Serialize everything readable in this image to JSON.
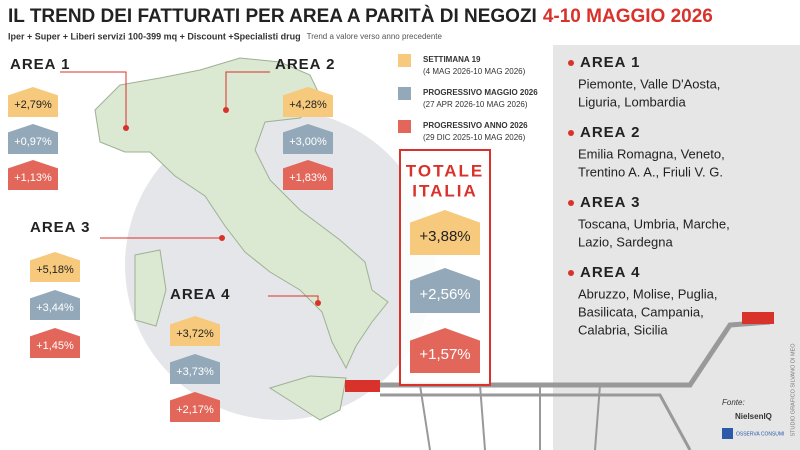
{
  "title": "IL TREND DEI FATTURATI PER AREA A PARITÀ DI NEGOZI",
  "title_highlight": "4-10 MAGGIO 2026",
  "subtitle": "Iper + Super + Liberi servizi 100-399 mq + Discount +Specialisti drug",
  "subtitle_note": "Trend a valore verso anno precedente",
  "legend": [
    {
      "label": "SETTIMANA 19",
      "range": "(4 MAG 2026-10 MAG 2026)"
    },
    {
      "label": "PROGRESSIVO MAGGIO 2026",
      "range": "(27 APR 2026-10 MAG 2026)"
    },
    {
      "label": "PROGRESSIVO ANNO 2026",
      "range": "(29 DIC 2025-10 MAG 2026)"
    }
  ],
  "areas": [
    {
      "name": "AREA 1",
      "values": [
        "+2,79%",
        "+0,97%",
        "+1,13%"
      ]
    },
    {
      "name": "AREA 2",
      "values": [
        "+4,28%",
        "+3,00%",
        "+1,83%"
      ]
    },
    {
      "name": "AREA 3",
      "values": [
        "+5,18%",
        "+3,44%",
        "+1,45%"
      ]
    },
    {
      "name": "AREA 4",
      "values": [
        "+3,72%",
        "+3,73%",
        "+2,17%"
      ]
    }
  ],
  "total": {
    "title_1": "TOTALE",
    "title_2": "ITALIA",
    "values": [
      "+3,88%",
      "+2,56%",
      "+1,57%"
    ]
  },
  "regions": [
    {
      "name": "AREA 1",
      "lines": [
        "Piemonte, Valle D'Aosta,",
        "Liguria, Lombardia"
      ]
    },
    {
      "name": "AREA 2",
      "lines": [
        "Emilia Romagna, Veneto,",
        "Trentino A. A., Friuli V. G."
      ]
    },
    {
      "name": "AREA 3",
      "lines": [
        "Toscana, Umbria, Marche,",
        "Lazio, Sardegna"
      ]
    },
    {
      "name": "AREA 4",
      "lines": [
        "Abruzzo, Molise, Puglia,",
        "Basilicata, Campania,",
        "Calabria, Sicilia"
      ]
    }
  ],
  "credit": "STUDIO GRAFICO SILVANO DI MEO",
  "source_label": "Fonte:",
  "sources": [
    "NielsenIQ",
    "OSSERVA CONSUMI"
  ]
}
